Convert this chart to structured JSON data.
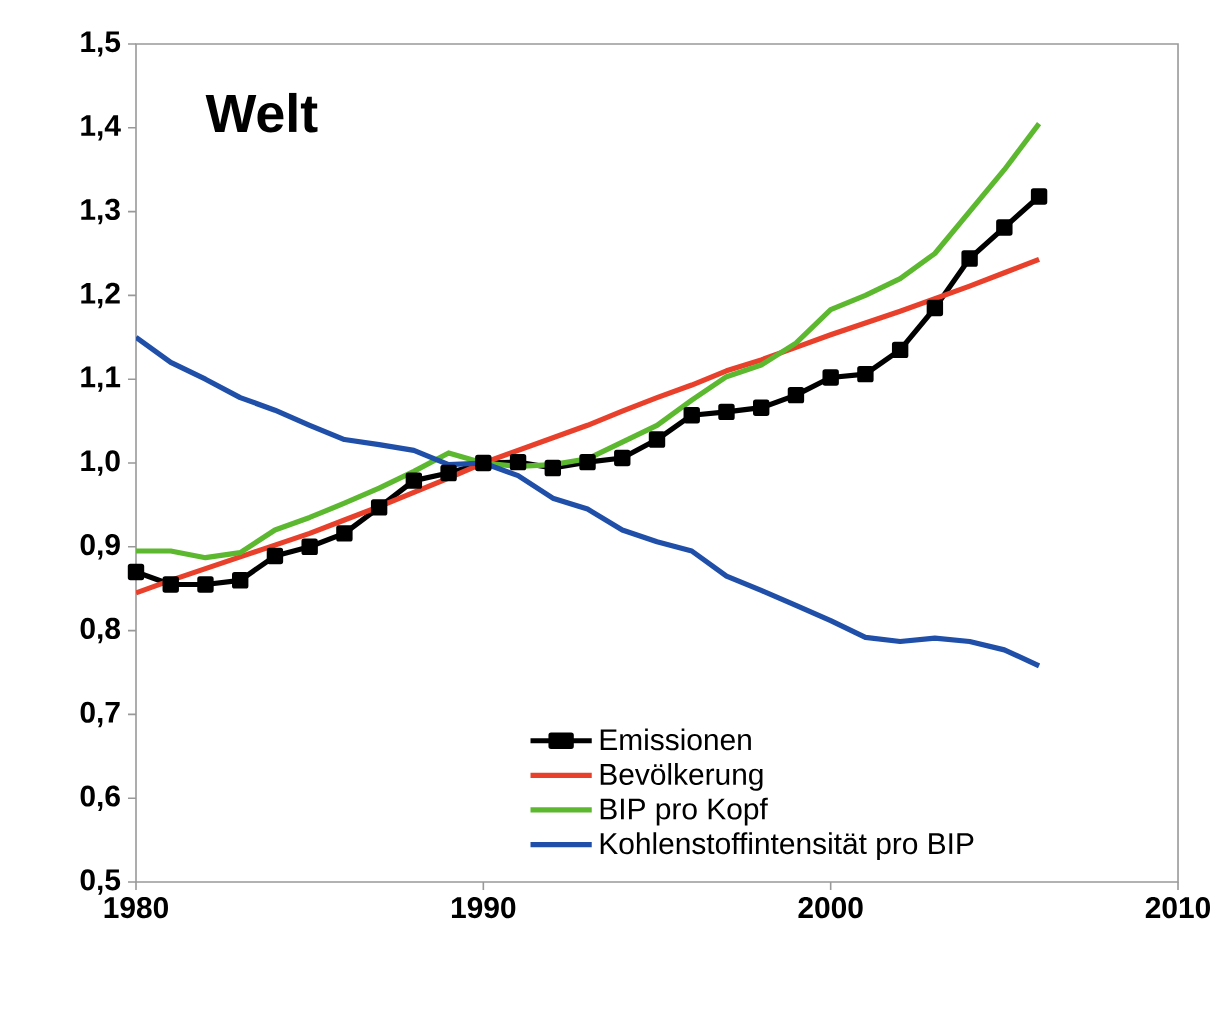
{
  "chart_data": {
    "type": "line",
    "title": "Welt",
    "x": [
      1980,
      1981,
      1982,
      1983,
      1984,
      1985,
      1986,
      1987,
      1988,
      1989,
      1990,
      1991,
      1992,
      1993,
      1994,
      1995,
      1996,
      1997,
      1998,
      1999,
      2000,
      2001,
      2002,
      2003,
      2004,
      2005,
      2006
    ],
    "series": [
      {
        "name": "Emissionen",
        "color": "#000000",
        "marker": "square",
        "values": [
          0.87,
          0.855,
          0.855,
          0.86,
          0.889,
          0.9,
          0.916,
          0.947,
          0.979,
          0.988,
          1.0,
          1.001,
          0.994,
          1.001,
          1.006,
          1.028,
          1.057,
          1.061,
          1.066,
          1.081,
          1.102,
          1.106,
          1.135,
          1.185,
          1.244,
          1.281,
          1.318
        ]
      },
      {
        "name": "Bevölkerung",
        "color": "#e8402a",
        "values": [
          0.845,
          0.86,
          0.874,
          0.888,
          0.902,
          0.916,
          0.932,
          0.948,
          0.965,
          0.982,
          1.0,
          1.015,
          1.03,
          1.045,
          1.062,
          1.078,
          1.093,
          1.11,
          1.123,
          1.138,
          1.153,
          1.167,
          1.181,
          1.196,
          1.211,
          1.227,
          1.243
        ]
      },
      {
        "name": "BIP pro Kopf",
        "color": "#5cb82e",
        "values": [
          0.895,
          0.895,
          0.887,
          0.893,
          0.92,
          0.935,
          0.952,
          0.97,
          0.99,
          1.012,
          1.0,
          0.996,
          0.998,
          1.005,
          1.025,
          1.045,
          1.075,
          1.103,
          1.117,
          1.143,
          1.183,
          1.2,
          1.22,
          1.25,
          1.3,
          1.35,
          1.405
        ]
      },
      {
        "name": "Kohlenstoffintensität pro BIP",
        "color": "#1f4fa8",
        "values": [
          1.15,
          1.12,
          1.1,
          1.078,
          1.063,
          1.045,
          1.028,
          1.022,
          1.015,
          0.998,
          1.0,
          0.985,
          0.958,
          0.945,
          0.92,
          0.906,
          0.895,
          0.865,
          0.848,
          0.83,
          0.812,
          0.792,
          0.787,
          0.791,
          0.787,
          0.777,
          0.758
        ]
      }
    ],
    "xlim": [
      1980,
      2010
    ],
    "xticks": [
      1980,
      1990,
      2000,
      2010
    ],
    "ylim": [
      0.5,
      1.5
    ],
    "yticks": [
      {
        "value": 0.5,
        "label": "0,5"
      },
      {
        "value": 0.6,
        "label": "0,6"
      },
      {
        "value": 0.7,
        "label": "0,7"
      },
      {
        "value": 0.8,
        "label": "0,8"
      },
      {
        "value": 0.9,
        "label": "0,9"
      },
      {
        "value": 1.0,
        "label": "1,0"
      },
      {
        "value": 1.1,
        "label": "1,1"
      },
      {
        "value": 1.2,
        "label": "1,2"
      },
      {
        "value": 1.3,
        "label": "1,3"
      },
      {
        "value": 1.4,
        "label": "1,4"
      },
      {
        "value": 1.5,
        "label": "1,5"
      }
    ],
    "legend": "bottom"
  }
}
